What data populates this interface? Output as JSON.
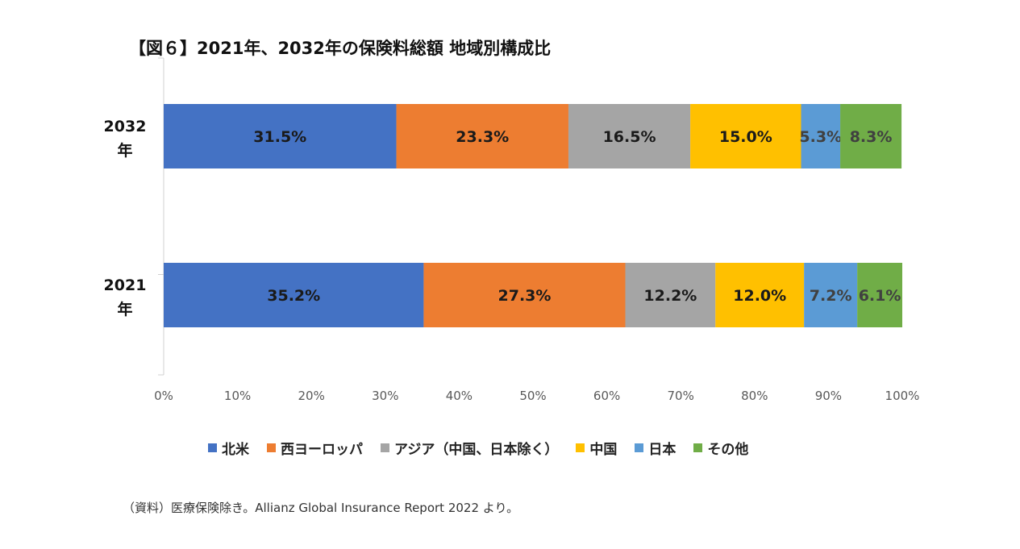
{
  "title": "【図６】2021年、2032年の保険料総額  地域別構成比",
  "source": "（資料）医療保険除き。Allianz Global Insurance Report 2022 より。",
  "chart_data": {
    "type": "bar",
    "orientation": "horizontal",
    "stacked": "percent",
    "categories": [
      "2032年",
      "2021年"
    ],
    "series": [
      {
        "name": "北米",
        "color": "#4472C4",
        "values": [
          31.5,
          35.2
        ],
        "labels": [
          "31.5%",
          "35.2%"
        ]
      },
      {
        "name": "西ヨーロッパ",
        "color": "#ED7D31",
        "values": [
          23.3,
          27.3
        ],
        "labels": [
          "23.3%",
          "27.3%"
        ]
      },
      {
        "name": "アジア（中国、日本除く）",
        "color": "#A5A5A5",
        "values": [
          16.5,
          12.2
        ],
        "labels": [
          "16.5%",
          "12.2%"
        ]
      },
      {
        "name": "中国",
        "color": "#FFC000",
        "values": [
          15.0,
          12.0
        ],
        "labels": [
          "15.0%",
          "12.0%"
        ]
      },
      {
        "name": "日本",
        "color": "#5B9BD5",
        "values": [
          5.3,
          7.2
        ],
        "labels": [
          "5.3%",
          "7.2%"
        ]
      },
      {
        "name": "その他",
        "color": "#70AD47",
        "values": [
          8.3,
          6.1
        ],
        "labels": [
          "8.3%",
          "6.1%"
        ]
      }
    ],
    "xlim": [
      0,
      100
    ],
    "xticks": [
      "0%",
      "10%",
      "20%",
      "30%",
      "40%",
      "50%",
      "60%",
      "70%",
      "80%",
      "90%",
      "100%"
    ],
    "legend_position": "bottom",
    "grid": false
  }
}
